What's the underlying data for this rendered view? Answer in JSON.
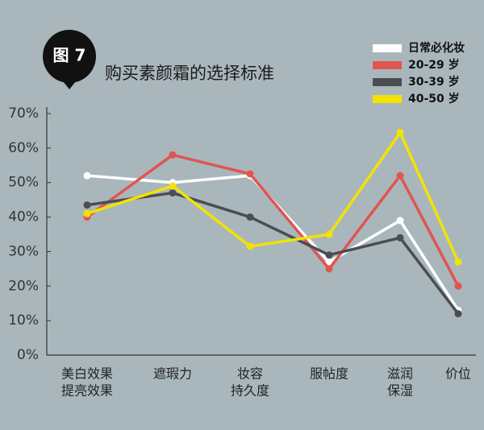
{
  "chart_data": {
    "type": "line",
    "badge": "图 7",
    "title": "购买素颜霜的选择标准",
    "categories": [
      [
        "美白效果",
        "提亮效果"
      ],
      [
        "遮瑕力"
      ],
      [
        "妆容",
        "持久度"
      ],
      [
        "服帖度"
      ],
      [
        "滋润",
        "保湿"
      ],
      [
        "价位"
      ]
    ],
    "series": [
      {
        "name": "日常必化妆",
        "color": "#ffffff",
        "values": [
          52,
          50,
          52,
          27,
          39,
          13
        ]
      },
      {
        "name": "20-29 岁",
        "color": "#e05550",
        "values": [
          40,
          58,
          52.5,
          25,
          52,
          20
        ]
      },
      {
        "name": "30-39 岁",
        "color": "#4a4d52",
        "values": [
          43.5,
          47,
          40,
          29,
          34,
          12
        ]
      },
      {
        "name": "40-50 岁",
        "color": "#f2e300",
        "values": [
          41,
          49,
          31.5,
          35,
          64.5,
          27
        ]
      }
    ],
    "ylim": [
      0,
      70
    ],
    "yticks": [
      {
        "value": 0,
        "label": "0%"
      },
      {
        "value": 10,
        "label": "10%"
      },
      {
        "value": 20,
        "label": "20%"
      },
      {
        "value": 30,
        "label": "30%"
      },
      {
        "value": 40,
        "label": "40%"
      },
      {
        "value": 50,
        "label": "50%"
      },
      {
        "value": 60,
        "label": "60%"
      },
      {
        "value": 70,
        "label": "70%"
      }
    ],
    "legend": "top-right"
  }
}
